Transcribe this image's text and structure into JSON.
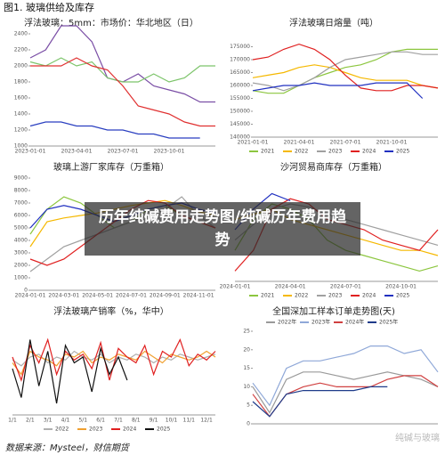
{
  "header": "图1. 玻璃供给及库存",
  "banner": "历年纯碱费用走势图/纯碱历年费用趋势",
  "source": "数据来源：Mysteel，财信期货",
  "watermark": "纯碱与玻璃",
  "chart_data": [
    {
      "type": "line",
      "title": "浮法玻璃：5mm：市场价：华北地区（日）",
      "categories": [
        "2023-01-01",
        null,
        null,
        "2023-04-01",
        null,
        null,
        "2023-07-01",
        null,
        null,
        "2023-10-01",
        null,
        null,
        null
      ],
      "series": [
        {
          "color": "#7b4fa6",
          "values": [
            2100,
            2200,
            2500,
            2500,
            2300,
            1850,
            1800,
            1900,
            1750,
            1700,
            1650,
            1550,
            1550
          ]
        },
        {
          "color": "#7cc46a",
          "values": [
            2050,
            2000,
            2100,
            2000,
            2050,
            1850,
            1800,
            1800,
            1900,
            1800,
            1850,
            2000,
            2000
          ]
        },
        {
          "color": "#e03030",
          "values": [
            2000,
            2000,
            2000,
            2100,
            2000,
            1950,
            1750,
            1500,
            1450,
            1400,
            1300,
            1250,
            1250
          ]
        },
        {
          "color": "#2a3fc0",
          "values": [
            1250,
            1300,
            1300,
            1250,
            1250,
            1200,
            1200,
            1150,
            1150,
            1100,
            1100,
            1100,
            null
          ]
        }
      ],
      "ylim": [
        1000,
        2400
      ],
      "yticks": [
        1000,
        1200,
        1400,
        1600,
        1800,
        2000,
        2200,
        2400
      ]
    },
    {
      "type": "line",
      "title": "浮法玻璃日熔量（吨）",
      "categories": [
        "2021-01-01",
        null,
        null,
        "2021-04-01",
        null,
        null,
        "2021-07-01",
        null,
        null,
        "2021-10-01",
        null,
        null,
        null
      ],
      "series": [
        {
          "name": "2021",
          "color": "#8cc63f",
          "values": [
            158000,
            157000,
            157000,
            160000,
            163000,
            165000,
            167000,
            168000,
            170000,
            173000,
            174000,
            174000,
            174000
          ]
        },
        {
          "name": "2022",
          "color": "#f5b800",
          "values": [
            163000,
            164000,
            165000,
            167000,
            168000,
            167000,
            165000,
            163000,
            162000,
            162000,
            162000,
            160000,
            159000
          ]
        },
        {
          "name": "2023",
          "color": "#a0a0a0",
          "values": [
            161000,
            160000,
            158000,
            160000,
            163000,
            167000,
            170000,
            171000,
            172000,
            173000,
            173000,
            172000,
            172000
          ]
        },
        {
          "name": "2024",
          "color": "#e02020",
          "values": [
            170000,
            171000,
            174000,
            176000,
            174000,
            170000,
            164000,
            159000,
            158000,
            158000,
            160000,
            160000,
            159000
          ]
        },
        {
          "name": "2025",
          "color": "#2030c0",
          "values": [
            158000,
            159000,
            160000,
            160000,
            161000,
            160000,
            160000,
            160000,
            161000,
            161000,
            161000,
            155000,
            null
          ]
        }
      ],
      "ylim": [
        140000,
        180000
      ],
      "yticks": [
        140000,
        145000,
        150000,
        155000,
        160000,
        165000,
        170000,
        175000
      ],
      "legend": "bottom"
    },
    {
      "type": "line",
      "title": "玻璃上游厂家库存（万重箱）",
      "categories": [
        "2024-01-01",
        null,
        "2024-03-01",
        null,
        "2024-05-01",
        null,
        "2024-07-01",
        null,
        "2024-09-01",
        null,
        "2024-11-01",
        null
      ],
      "series": [
        {
          "color": "#8cc63f",
          "values": [
            4500,
            6500,
            7500,
            7000,
            6000,
            5000,
            5500,
            6500,
            6800,
            6000,
            5500,
            5000
          ]
        },
        {
          "color": "#f5b800",
          "values": [
            3500,
            5500,
            5800,
            6000,
            6200,
            6500,
            6800,
            7000,
            7200,
            6800,
            6300,
            6000
          ]
        },
        {
          "color": "#a0a0a0",
          "values": [
            1500,
            2500,
            3500,
            4000,
            4500,
            5000,
            5500,
            6000,
            6500,
            7500,
            6000,
            5000
          ]
        },
        {
          "color": "#2030c0",
          "values": [
            5000,
            6500,
            6800,
            6500,
            6000,
            5500,
            6000,
            6500,
            6800,
            7000,
            6500,
            6200
          ]
        },
        {
          "color": "#e02020",
          "values": [
            2500,
            2000,
            2500,
            3500,
            4500,
            5500,
            6500,
            7200,
            7000,
            6000,
            5500,
            5000
          ]
        }
      ],
      "ylim": [
        0,
        9000
      ],
      "yticks": [
        0,
        1000,
        2000,
        3000,
        4000,
        5000,
        6000,
        7000,
        8000,
        9000
      ]
    },
    {
      "type": "line",
      "title": "沙河贸易商库存（万重箱）",
      "categories": [
        "2024-01-01",
        null,
        null,
        "2024-04-01",
        null,
        null,
        "2024-07-01",
        null,
        null,
        "2024-10-01",
        null,
        null
      ],
      "series": [
        {
          "name": "2021",
          "color": "#8cc63f",
          "values": [
            30,
            60,
            75,
            70,
            60,
            40,
            30,
            25,
            20,
            15,
            10,
            15
          ]
        },
        {
          "name": "2022",
          "color": "#f5b800",
          "values": [
            60,
            65,
            70,
            60,
            55,
            50,
            45,
            40,
            35,
            30,
            30,
            25
          ]
        },
        {
          "name": "2023",
          "color": "#a0a0a0",
          "values": [
            40,
            55,
            70,
            75,
            72,
            65,
            60,
            55,
            50,
            45,
            40,
            35
          ]
        },
        {
          "name": "2024",
          "color": "#e02020",
          "values": [
            10,
            30,
            70,
            80,
            75,
            60,
            55,
            50,
            40,
            35,
            30,
            50
          ]
        },
        {
          "name": "2025",
          "color": "#2030c0",
          "values": [
            50,
            70,
            85,
            78,
            null,
            null,
            null,
            null,
            null,
            null,
            null,
            null
          ]
        }
      ],
      "ylim": [
        0,
        100
      ],
      "legend": "bottom"
    },
    {
      "type": "line",
      "title": "浮法玻璃产销率（%，华中）",
      "categories": [
        "1/1",
        null,
        "2/1",
        null,
        "3/1",
        null,
        "4/1",
        null,
        "5/1",
        null,
        "6/1",
        null,
        "7/1",
        null,
        "8/1",
        null,
        "9/1",
        null,
        "10/1",
        null,
        "11/1",
        null,
        "12/1",
        null
      ],
      "series": [
        {
          "name": "2022",
          "color": "#b0b0b0",
          "values": [
            95,
            85,
            100,
            105,
            90,
            100,
            95,
            110,
            100,
            95,
            105,
            90,
            100,
            95,
            105,
            100,
            90,
            100,
            95,
            105,
            100,
            95,
            100,
            105
          ]
        },
        {
          "name": "2023",
          "color": "#f0a030",
          "values": [
            90,
            70,
            110,
            100,
            95,
            85,
            105,
            100,
            110,
            90,
            100,
            95,
            105,
            100,
            95,
            110,
            100,
            90,
            105,
            100,
            95,
            100,
            110,
            100
          ]
        },
        {
          "name": "2024",
          "color": "#e02020",
          "values": [
            100,
            60,
            120,
            90,
            130,
            70,
            110,
            95,
            105,
            80,
            125,
            60,
            115,
            100,
            90,
            120,
            70,
            110,
            100,
            130,
            85,
            105,
            95,
            110
          ]
        },
        {
          "name": "2025",
          "color": "#111111",
          "values": [
            80,
            30,
            130,
            50,
            110,
            20,
            120,
            90,
            100,
            40,
            115,
            70,
            100,
            60,
            null,
            null,
            null,
            null,
            null,
            null,
            null,
            null,
            null,
            null
          ]
        }
      ],
      "ylim": [
        0,
        160
      ],
      "legend": "bottom"
    },
    {
      "type": "line",
      "title": "全国深加工样本订单走势图(天)",
      "series": [
        {
          "name": "2022年",
          "color": "#9a9a9a",
          "values": [
            10,
            3,
            12,
            14,
            14,
            13,
            12,
            13,
            14,
            13,
            12,
            10
          ]
        },
        {
          "name": "2023年",
          "color": "#8fa8d8",
          "values": [
            11,
            5,
            15,
            17,
            17,
            18,
            19,
            21,
            21,
            19,
            20,
            14
          ]
        },
        {
          "name": "2024年",
          "color": "#d04040",
          "values": [
            8,
            2,
            8,
            10,
            11,
            10,
            10,
            10,
            12,
            13,
            13,
            10
          ]
        },
        {
          "name": "2025年",
          "color": "#1f3c8a",
          "values": [
            6,
            2,
            8,
            9,
            9,
            9,
            9,
            10,
            10,
            null,
            null,
            null
          ]
        }
      ],
      "ylim": [
        0,
        25
      ],
      "yticks": [
        0,
        5,
        10,
        15,
        20,
        25
      ],
      "legend": "top"
    }
  ]
}
